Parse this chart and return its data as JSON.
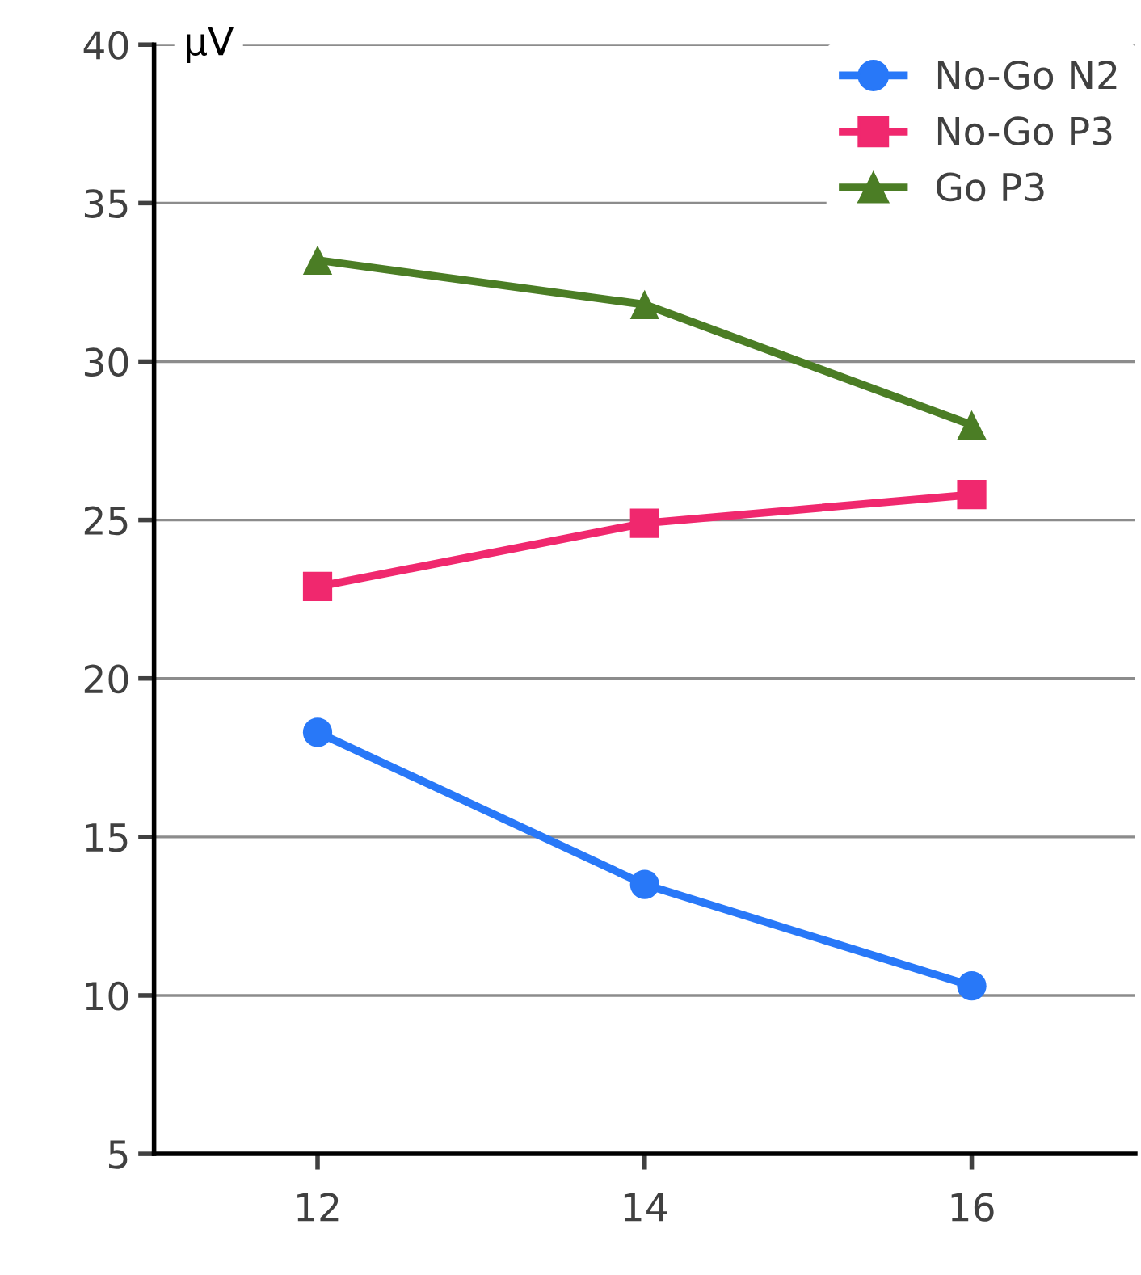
{
  "chart_data": {
    "type": "line",
    "ylabel": "μV",
    "x": [
      12,
      14,
      16
    ],
    "xlim": [
      11,
      17
    ],
    "xticks": [
      12,
      14,
      16
    ],
    "series": [
      {
        "name": "No-Go N2",
        "color": "#2878f8",
        "marker": "circle",
        "values": [
          18.3,
          13.5,
          10.3
        ]
      },
      {
        "name": "No-Go P3",
        "color": "#f0286e",
        "marker": "square",
        "values": [
          22.9,
          24.9,
          25.8
        ]
      },
      {
        "name": "Go P3",
        "color": "#4b7d25",
        "marker": "triangle",
        "values": [
          33.2,
          31.8,
          28.0
        ]
      }
    ],
    "ylim": [
      5,
      40
    ],
    "yticks": [
      5,
      10,
      15,
      20,
      25,
      30,
      35,
      40
    ],
    "grid": "y",
    "legend": "top right",
    "line_style": "solid"
  }
}
